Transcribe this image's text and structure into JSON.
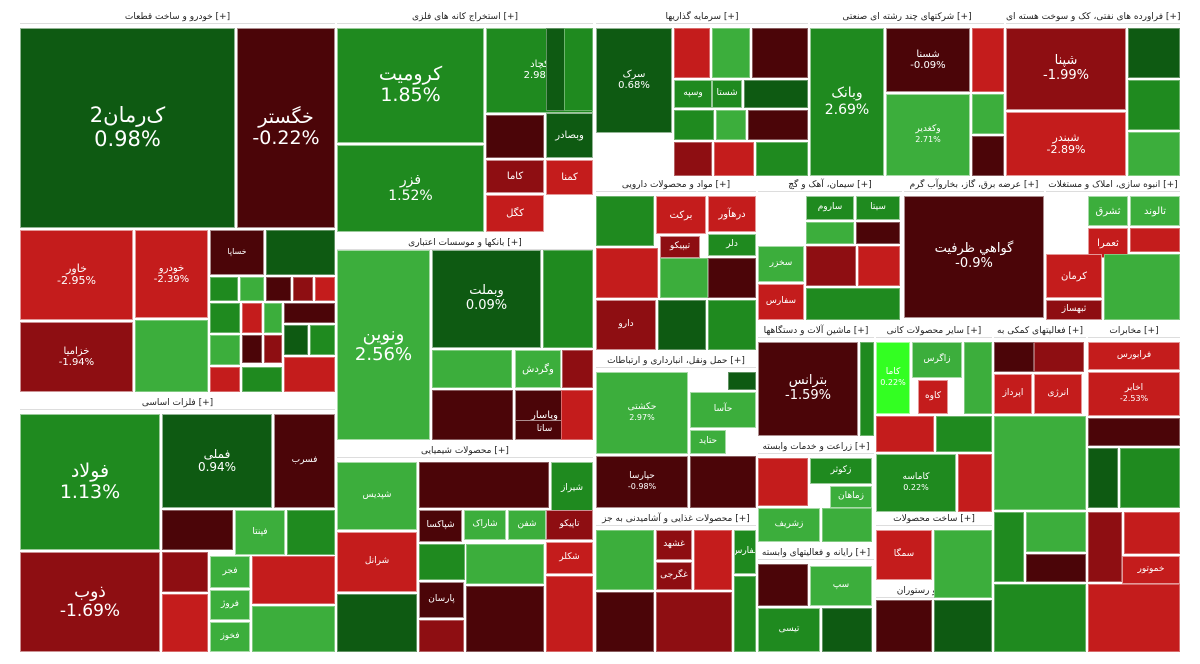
{
  "colors": {
    "dg": "#0e5a12",
    "mg": "#1f8a1f",
    "lg": "#3cae3c",
    "bg": "#33ff22",
    "dr": "#4b0508",
    "mr": "#8e0e12",
    "lr": "#c41c1c",
    "header_bg": "#ffffff"
  },
  "sectors": [
    {
      "title": "خودرو و ساخت قطعات [+]"
    },
    {
      "title": "استخراج کانه های فلزی [+]"
    },
    {
      "title": "سرمایه گذاریها [+]"
    },
    {
      "title": "شرکتهای چند رشته ای صنعتی [+]"
    },
    {
      "title": "فراورده های نفتی، کک و سوخت هسته ای [+]"
    },
    {
      "title": "فلزات اساسی [+]"
    },
    {
      "title": "بانکها و موسسات اعتباری [+]"
    },
    {
      "title": "محصولات شیمیایی [+]"
    },
    {
      "title": "مواد و محصولات دارویی [+]"
    },
    {
      "title": "سیمان، آهک و گچ [+]"
    },
    {
      "title": "عرضه برق، گاز، بخاروآب گرم [+]"
    },
    {
      "title": "انبوه سازی، املاک و مستغلات [+]"
    },
    {
      "title": "حمل ونقل، انبارداری و ارتباطات [+]"
    },
    {
      "title": "ماشین آلات و دستگاهها [+]"
    },
    {
      "title": "سایر محصولات کانی [+]"
    },
    {
      "title": "فعالیتهای کمکی به [+]"
    },
    {
      "title": "مخابرات [+]"
    },
    {
      "title": "محصولات غذایی و آشامیدنی به جز [+]"
    },
    {
      "title": "زراعت و خدمات وابسته [+]"
    },
    {
      "title": "ساخت محصولات [+]"
    },
    {
      "title": "رایانه و فعالیتهای وابسته [+]"
    },
    {
      "title": "هتل و رستوران [+]"
    }
  ],
  "tiles": [
    {
      "symbol": "خساپا",
      "change": ""
    },
    {
      "symbol": "خودرو",
      "change": "-2.39%"
    },
    {
      "symbol": "خاور",
      "change": "-2.95%"
    },
    {
      "symbol": "خزامیا",
      "change": "-1.94%"
    },
    {
      "symbol": "خگستر",
      "change": "-0.22%"
    },
    {
      "symbol": "ک‌رمان2",
      "change": "0.98%"
    },
    {
      "symbol": "کرومیت",
      "change": "1.85%"
    },
    {
      "symbol": "فزر",
      "change": "1.52%"
    },
    {
      "symbol": "کچاد",
      "change": "2.98%"
    },
    {
      "symbol": "کگل",
      "change": ""
    },
    {
      "symbol": "کاما",
      "change": ""
    },
    {
      "symbol": "کمنا",
      "change": ""
    },
    {
      "symbol": "وبصادر",
      "change": ""
    },
    {
      "symbol": "ونوین",
      "change": "2.56%"
    },
    {
      "symbol": "وبملت",
      "change": "0.09%"
    },
    {
      "symbol": "وپاسار",
      "change": ""
    },
    {
      "symbol": "ساتا",
      "change": ""
    },
    {
      "symbol": "وگردش",
      "change": ""
    },
    {
      "symbol": "سرک",
      "change": "0.68%"
    },
    {
      "symbol": "وسپه",
      "change": ""
    },
    {
      "symbol": "شستا",
      "change": ""
    },
    {
      "symbol": "وبانک",
      "change": "2.69%"
    },
    {
      "symbol": "شسنا",
      "change": "-0.09%"
    },
    {
      "symbol": "وکغدیر",
      "change": "2.71%"
    },
    {
      "symbol": "شپنا",
      "change": "-1.99%"
    },
    {
      "symbol": "شبندر",
      "change": "-2.89%"
    },
    {
      "symbol": "فولاد",
      "change": "1.13%"
    },
    {
      "symbol": "ذوب",
      "change": "-1.69%"
    },
    {
      "symbol": "فملی",
      "change": "0.94%"
    },
    {
      "symbol": "فسرب",
      "change": ""
    },
    {
      "symbol": "فپنتا",
      "change": ""
    },
    {
      "symbol": "فجر",
      "change": ""
    },
    {
      "symbol": "فروژ",
      "change": ""
    },
    {
      "symbol": "فخوز",
      "change": ""
    },
    {
      "symbol": "شپدیس",
      "change": ""
    },
    {
      "symbol": "شرانل",
      "change": ""
    },
    {
      "symbol": "شاراک",
      "change": ""
    },
    {
      "symbol": "شفن",
      "change": ""
    },
    {
      "symbol": "شپاکسا",
      "change": ""
    },
    {
      "symbol": "شیراز",
      "change": ""
    },
    {
      "symbol": "پارسان",
      "change": ""
    },
    {
      "symbol": "تاپیکو",
      "change": ""
    },
    {
      "symbol": "شکلر",
      "change": ""
    },
    {
      "symbol": "برکت",
      "change": ""
    },
    {
      "symbol": "درهآور",
      "change": ""
    },
    {
      "symbol": "دلر",
      "change": ""
    },
    {
      "symbol": "تیپیکو",
      "change": ""
    },
    {
      "symbol": "دارو",
      "change": ""
    },
    {
      "symbol": "سیتا",
      "change": ""
    },
    {
      "symbol": "ساروم",
      "change": ""
    },
    {
      "symbol": "سخزر",
      "change": ""
    },
    {
      "symbol": "سفارس",
      "change": ""
    },
    {
      "symbol": "گواهي ظرفيت",
      "change": "-0.9%"
    },
    {
      "symbol": "تالوند",
      "change": ""
    },
    {
      "symbol": "ثشرق",
      "change": ""
    },
    {
      "symbol": "ثعمرا",
      "change": ""
    },
    {
      "symbol": "کرمان",
      "change": ""
    },
    {
      "symbol": "ثبهساز",
      "change": ""
    },
    {
      "symbol": "حکشتی",
      "change": "2.97%"
    },
    {
      "symbol": "حتاید",
      "change": ""
    },
    {
      "symbol": "حپارسا",
      "change": "-0.98%"
    },
    {
      "symbol": "حآسا",
      "change": ""
    },
    {
      "symbol": "بترانس",
      "change": "-1.59%"
    },
    {
      "symbol": "کاما",
      "change": "0.22%"
    },
    {
      "symbol": "کاماسه",
      "change": "0.22%"
    },
    {
      "symbol": "زاگرس",
      "change": ""
    },
    {
      "symbol": "کاوه",
      "change": ""
    },
    {
      "symbol": "اپرداز",
      "change": ""
    },
    {
      "symbol": "انرژی",
      "change": ""
    },
    {
      "symbol": "فرابورس",
      "change": ""
    },
    {
      "symbol": "اخابر",
      "change": "-2.53%"
    },
    {
      "symbol": "غشهد",
      "change": ""
    },
    {
      "symbol": "غگرجی",
      "change": ""
    },
    {
      "symbol": "غفارس",
      "change": ""
    },
    {
      "symbol": "زکوثر",
      "change": ""
    },
    {
      "symbol": "زشریف",
      "change": ""
    },
    {
      "symbol": "زماهان",
      "change": ""
    },
    {
      "symbol": "سپ",
      "change": ""
    },
    {
      "symbol": "تیسی",
      "change": ""
    },
    {
      "symbol": "سمگا",
      "change": ""
    },
    {
      "symbol": "خموتور",
      "change": ""
    }
  ]
}
